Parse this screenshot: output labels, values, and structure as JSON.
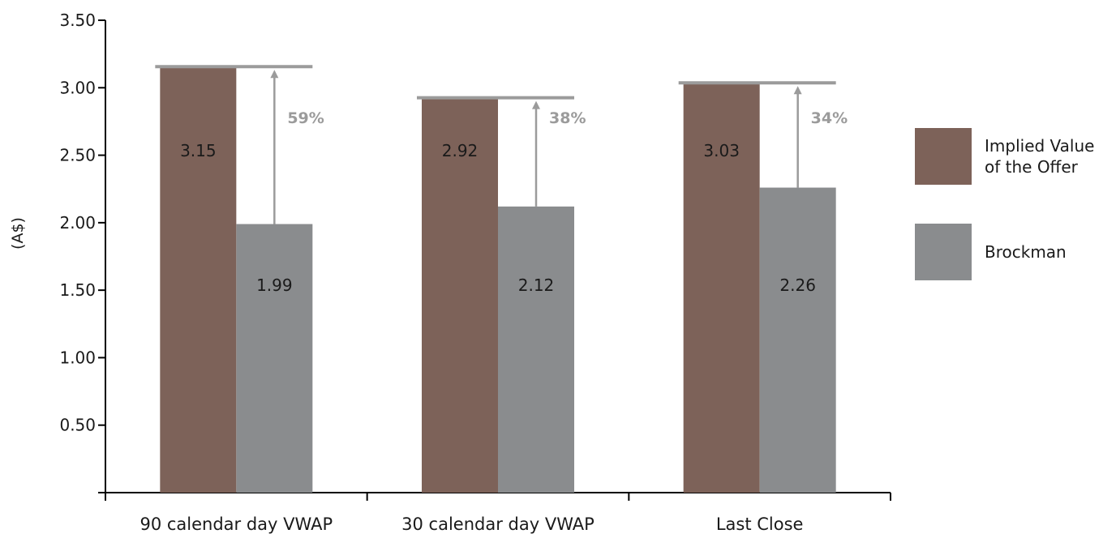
{
  "chart_data": {
    "type": "bar",
    "categories": [
      "90 calendar day VWAP",
      "30 calendar day VWAP",
      "Last Close"
    ],
    "series": [
      {
        "name": "Implied Value of the Offer",
        "values": [
          3.15,
          2.92,
          3.03
        ],
        "color": "#7d6259"
      },
      {
        "name": "Brockman",
        "values": [
          1.99,
          2.12,
          2.26
        ],
        "color": "#8a8c8e"
      }
    ],
    "data_labels": {
      "offer": [
        "3.15",
        "2.92",
        "3.03"
      ],
      "brockman": [
        "1.99",
        "2.12",
        "2.26"
      ]
    },
    "premiums": [
      "59%",
      "38%",
      "34%"
    ],
    "premium_color": "#9b9b9b",
    "ylabel": "(A$)",
    "xlabel": "",
    "title": "",
    "ylim": [
      0,
      3.5
    ],
    "yticks": [
      "0.50",
      "1.00",
      "1.50",
      "2.00",
      "2.50",
      "3.00",
      "3.50"
    ],
    "grid": false,
    "legend_position": "right"
  },
  "legend": {
    "items": [
      {
        "label": "Implied Value of the Offer",
        "color": "#7d6259"
      },
      {
        "label": "Brockman",
        "color": "#8a8c8e"
      }
    ]
  }
}
